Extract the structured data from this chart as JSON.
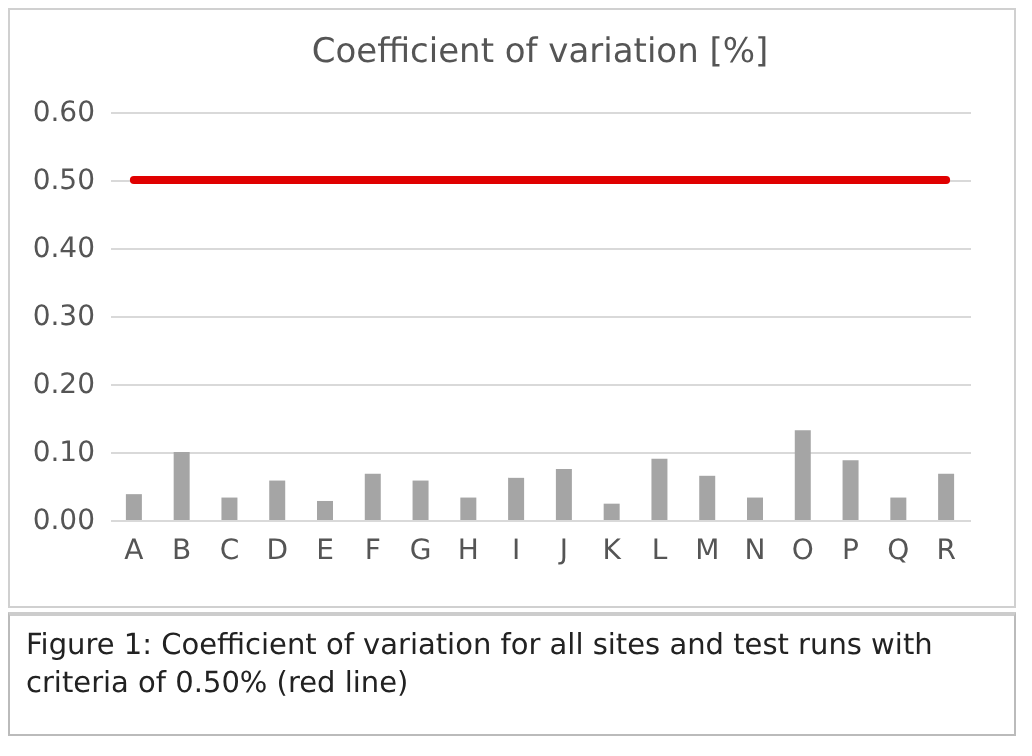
{
  "chart_data": {
    "type": "bar",
    "title": "Coefficient of variation [%]",
    "categories": [
      "A",
      "B",
      "C",
      "D",
      "E",
      "F",
      "G",
      "H",
      "I",
      "J",
      "K",
      "L",
      "M",
      "N",
      "O",
      "P",
      "Q",
      "R"
    ],
    "values": [
      0.038,
      0.1,
      0.033,
      0.058,
      0.028,
      0.068,
      0.058,
      0.033,
      0.062,
      0.075,
      0.024,
      0.09,
      0.065,
      0.033,
      0.132,
      0.088,
      0.033,
      0.068
    ],
    "color": "#a5a5a5",
    "ylim": [
      0,
      0.6
    ],
    "yticks": [
      {
        "value": 0,
        "label": "0.00"
      },
      {
        "value": 0.1,
        "label": "0.10"
      },
      {
        "value": 0.2,
        "label": "0.20"
      },
      {
        "value": 0.3,
        "label": "0.30"
      },
      {
        "value": 0.4,
        "label": "0.40"
      },
      {
        "value": 0.5,
        "label": "0.50"
      },
      {
        "value": 0.6,
        "label": "0.60"
      }
    ],
    "grid": "y",
    "ref_lines": [
      {
        "axis": "y",
        "value": 0.5,
        "color": "#e00000",
        "line_style": "solid"
      }
    ],
    "annotations": [
      "Figure 1: Coefficient of variation for all sites and test runs with criteria of 0.50% (red line)"
    ]
  }
}
